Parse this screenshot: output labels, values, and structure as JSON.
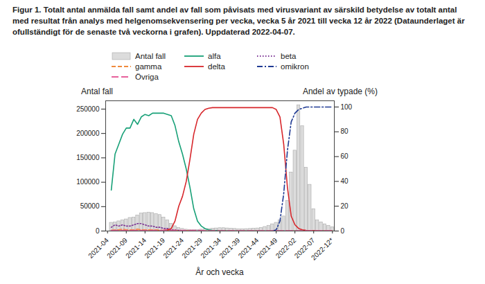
{
  "chart_data": {
    "type": "bar",
    "title": "Figur 1. Totalt antal anmälda fall samt andel av fall som påvisats med virusvariant av särskild betydelse av totalt antal med resultat från analys med helgenomsekvensering per vecka, vecka 5 år 2021 till vecka 12 år 2022 (Dataunderlaget är ofullständigt för de senaste två veckorna i grafen). Uppdaterad 2022-04-07.",
    "xlabel": "År och vecka",
    "ylabel": "Antal fall",
    "y2label": "Andel av typade (%)",
    "categories": [
      "2021-04",
      null,
      null,
      null,
      null,
      "2021-09",
      null,
      null,
      null,
      null,
      "2021-14",
      null,
      null,
      null,
      null,
      "2021-19",
      null,
      null,
      null,
      null,
      "2021-24",
      null,
      null,
      null,
      null,
      "2021-29",
      null,
      null,
      null,
      null,
      "2021-34",
      null,
      null,
      null,
      null,
      "2021-39",
      null,
      null,
      null,
      null,
      "2021-44",
      null,
      null,
      null,
      null,
      "2021-49",
      null,
      null,
      null,
      null,
      "2022-02",
      null,
      null,
      null,
      null,
      "2022-07",
      null,
      null,
      null,
      null,
      "2022-12*"
    ],
    "ylim": [
      0,
      267000
    ],
    "yticks": [
      0,
      50000,
      100000,
      150000,
      200000,
      250000
    ],
    "y2lim": [
      0,
      105
    ],
    "y2ticks": [
      0,
      20,
      40,
      60,
      80,
      100
    ],
    "grid": false,
    "legend": "top",
    "series": [
      {
        "name": "Antal fall",
        "type": "bar",
        "color": "#dcdcdc",
        "values": [
          null,
          17000,
          18000,
          20000,
          22000,
          24000,
          27000,
          28000,
          32000,
          36000,
          37000,
          38000,
          37000,
          35000,
          33000,
          28000,
          22000,
          15000,
          10000,
          6500,
          4500,
          3000,
          2200,
          2000,
          2300,
          3000,
          3800,
          4200,
          4800,
          5500,
          6000,
          6000,
          5500,
          5000,
          4500,
          4000,
          4000,
          4200,
          4500,
          4800,
          5500,
          6500,
          8500,
          11000,
          14000,
          17000,
          22000,
          30000,
          62000,
          120000,
          165000,
          258000,
          215000,
          130000,
          95000,
          45000,
          22000,
          18000,
          14000,
          11000,
          8000
        ]
      },
      {
        "name": "alfa",
        "type": "line",
        "axis": "y2",
        "color": "#17a077",
        "line_style": "solid",
        "values": [
          null,
          33,
          62,
          70,
          78,
          83,
          83,
          90,
          86,
          92,
          94,
          93,
          95,
          95,
          95,
          95,
          94,
          93,
          85,
          72,
          62,
          50,
          35,
          18,
          8,
          4,
          2,
          1,
          0.5,
          0.3,
          0.2,
          0.1,
          0,
          0,
          0,
          0,
          0,
          0,
          0,
          0,
          0,
          0,
          0,
          0,
          0,
          0,
          0,
          0,
          0,
          0,
          0,
          0,
          0,
          0,
          0,
          0,
          0,
          0,
          0,
          0,
          0
        ]
      },
      {
        "name": "beta",
        "type": "line",
        "axis": "y2",
        "color": "#7b3294",
        "line_style": "dotted",
        "values": [
          null,
          3,
          5,
          4,
          5,
          4,
          4,
          5,
          6,
          6,
          5,
          4,
          4,
          3,
          3,
          2,
          2,
          1,
          1,
          0.5,
          0.3,
          0.2,
          0.1,
          0,
          0,
          0,
          0,
          0,
          0,
          0,
          0,
          0,
          0,
          0,
          0,
          0,
          0,
          0,
          0,
          0,
          0,
          0,
          0,
          0,
          0,
          0,
          0,
          0,
          0,
          0,
          0,
          0,
          0,
          0,
          0,
          0,
          0,
          0,
          0,
          0,
          0
        ]
      },
      {
        "name": "gamma",
        "type": "line",
        "axis": "y2",
        "color": "#f08a3c",
        "line_style": "dashed",
        "values": [
          null,
          0.5,
          1,
          1,
          1.5,
          1,
          1,
          1,
          1.5,
          1,
          1,
          1,
          1,
          1,
          0.5,
          0.5,
          0.5,
          0.5,
          0.5,
          0.3,
          0.3,
          0.2,
          0.2,
          0.1,
          0,
          0,
          0,
          0,
          0,
          0,
          0,
          0,
          0,
          0,
          0,
          0,
          0,
          0,
          0,
          0,
          0,
          0,
          0,
          0,
          0,
          0,
          0,
          0,
          0,
          0,
          0,
          0,
          0,
          0,
          0,
          0,
          0,
          0,
          0,
          0,
          0
        ]
      },
      {
        "name": "delta",
        "type": "line",
        "axis": "y2",
        "color": "#d7262b",
        "line_style": "solid",
        "values": [
          null,
          0,
          0,
          0,
          0,
          0,
          0,
          0,
          0,
          0,
          0,
          0,
          0,
          0,
          0,
          0.5,
          1,
          2,
          8,
          20,
          28,
          40,
          58,
          78,
          90,
          95,
          98,
          99,
          99.5,
          99.5,
          99.5,
          99.5,
          99.5,
          99.5,
          99.5,
          99.5,
          99.5,
          99.5,
          99.5,
          99.5,
          99.5,
          99.5,
          99.5,
          99.5,
          99.5,
          98,
          92,
          70,
          35,
          12,
          5,
          2,
          1,
          0.5,
          0.3,
          0.2,
          0.1,
          0,
          0,
          0,
          0
        ]
      },
      {
        "name": "omikron",
        "type": "line",
        "axis": "y2",
        "color": "#1f3a93",
        "line_style": "dashdot",
        "values": [
          null,
          null,
          null,
          null,
          null,
          null,
          null,
          null,
          null,
          null,
          null,
          null,
          null,
          null,
          null,
          null,
          null,
          null,
          null,
          null,
          null,
          null,
          null,
          null,
          null,
          null,
          null,
          null,
          null,
          null,
          null,
          null,
          null,
          null,
          null,
          null,
          null,
          null,
          null,
          null,
          null,
          null,
          null,
          null,
          0,
          1,
          8,
          30,
          65,
          88,
          95,
          98,
          99,
          100,
          100,
          100,
          100,
          100,
          100,
          100,
          100
        ]
      },
      {
        "name": "Övriga",
        "type": "line",
        "axis": "y2",
        "color": "#e7609b",
        "line_style": "longdash",
        "values": [
          null,
          0.5,
          0.5,
          0.5,
          0.5,
          0.5,
          0.5,
          0.5,
          0.5,
          0.5,
          0.5,
          0.5,
          0.5,
          0.5,
          0.5,
          0.5,
          0.5,
          0.5,
          0.5,
          0.5,
          0.5,
          0.5,
          0.5,
          0.5,
          0.5,
          0.5,
          0.2,
          0.2,
          0.2,
          0.2,
          0.2,
          0.2,
          0.2,
          0.2,
          0.2,
          0.2,
          0.2,
          0.2,
          0.2,
          0.2,
          0.2,
          0.2,
          0.2,
          0.2,
          0.2,
          0.2,
          0.2,
          0.2,
          0.2,
          0.2,
          0.2,
          0.2,
          0.2,
          0.2,
          0.2,
          0.2,
          0.2,
          0.2,
          0.2,
          0.2,
          0.2
        ]
      }
    ]
  }
}
